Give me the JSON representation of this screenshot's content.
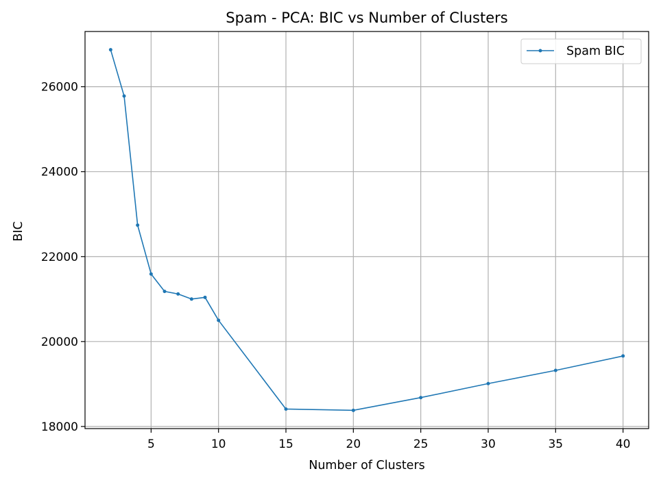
{
  "chart_data": {
    "type": "line",
    "title": "Spam - PCA: BIC vs Number of Clusters",
    "xlabel": "Number of Clusters",
    "ylabel": "BIC",
    "xlim": [
      0.1,
      41.9
    ],
    "ylim": [
      17950,
      27300
    ],
    "xticks": [
      5,
      10,
      15,
      20,
      25,
      30,
      35,
      40
    ],
    "yticks": [
      18000,
      20000,
      22000,
      24000,
      26000
    ],
    "grid": true,
    "legend_position": "top-right",
    "series": [
      {
        "name": "Spam BIC",
        "color": "#1f77b4",
        "x": [
          2,
          3,
          4,
          5,
          6,
          7,
          8,
          9,
          10,
          15,
          20,
          25,
          30,
          35,
          40
        ],
        "y": [
          26870,
          25780,
          22740,
          21590,
          21180,
          21120,
          21000,
          21040,
          20500,
          18410,
          18380,
          18680,
          19010,
          19320,
          19660
        ]
      }
    ]
  }
}
